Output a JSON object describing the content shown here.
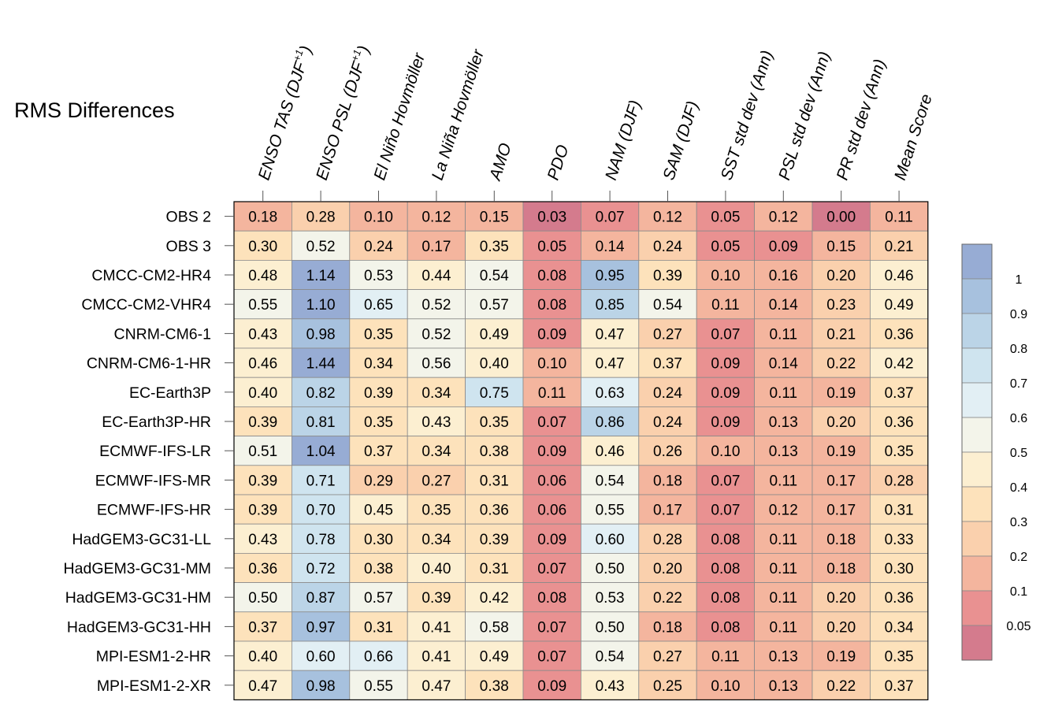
{
  "title": "RMS Differences",
  "chart_data": {
    "type": "heatmap",
    "title": "RMS Differences",
    "columns": [
      {
        "label": "ENSO TAS (DJF",
        "sup": "+1",
        "tail": ")"
      },
      {
        "label": "ENSO PSL (DJF",
        "sup": "+1",
        "tail": ")"
      },
      {
        "label": "El Niño Hovmöller",
        "sup": "",
        "tail": ""
      },
      {
        "label": "La Niña Hovmöller",
        "sup": "",
        "tail": ""
      },
      {
        "label": "AMO",
        "sup": "",
        "tail": ""
      },
      {
        "label": "PDO",
        "sup": "",
        "tail": ""
      },
      {
        "label": "NAM (DJF)",
        "sup": "",
        "tail": ""
      },
      {
        "label": "SAM (DJF)",
        "sup": "",
        "tail": ""
      },
      {
        "label": "SST std dev (Ann)",
        "sup": "",
        "tail": ""
      },
      {
        "label": "PSL std dev (Ann)",
        "sup": "",
        "tail": ""
      },
      {
        "label": "PR std dev (Ann)",
        "sup": "",
        "tail": ""
      },
      {
        "label": "Mean Score",
        "sup": "",
        "tail": ""
      }
    ],
    "rows": [
      "OBS 2",
      "OBS 3",
      "CMCC-CM2-HR4",
      "CMCC-CM2-VHR4",
      "CNRM-CM6-1",
      "CNRM-CM6-1-HR",
      "EC-Earth3P",
      "EC-Earth3P-HR",
      "ECMWF-IFS-LR",
      "ECMWF-IFS-MR",
      "ECMWF-IFS-HR",
      "HadGEM3-GC31-LL",
      "HadGEM3-GC31-MM",
      "HadGEM3-GC31-HM",
      "HadGEM3-GC31-HH",
      "MPI-ESM1-2-HR",
      "MPI-ESM1-2-XR"
    ],
    "values": [
      [
        "0.18",
        "0.28",
        "0.10",
        "0.12",
        "0.15",
        "0.03",
        "0.07",
        "0.12",
        "0.05",
        "0.12",
        "0.00",
        "0.11"
      ],
      [
        "0.30",
        "0.52",
        "0.24",
        "0.17",
        "0.35",
        "0.05",
        "0.14",
        "0.24",
        "0.05",
        "0.09",
        "0.15",
        "0.21"
      ],
      [
        "0.48",
        "1.14",
        "0.53",
        "0.44",
        "0.54",
        "0.08",
        "0.95",
        "0.39",
        "0.10",
        "0.16",
        "0.20",
        "0.46"
      ],
      [
        "0.55",
        "1.10",
        "0.65",
        "0.52",
        "0.57",
        "0.08",
        "0.85",
        "0.54",
        "0.11",
        "0.14",
        "0.23",
        "0.49"
      ],
      [
        "0.43",
        "0.98",
        "0.35",
        "0.52",
        "0.49",
        "0.09",
        "0.47",
        "0.27",
        "0.07",
        "0.11",
        "0.21",
        "0.36"
      ],
      [
        "0.46",
        "1.44",
        "0.34",
        "0.56",
        "0.40",
        "0.10",
        "0.47",
        "0.37",
        "0.09",
        "0.14",
        "0.22",
        "0.42"
      ],
      [
        "0.40",
        "0.82",
        "0.39",
        "0.34",
        "0.75",
        "0.11",
        "0.63",
        "0.24",
        "0.09",
        "0.11",
        "0.19",
        "0.37"
      ],
      [
        "0.39",
        "0.81",
        "0.35",
        "0.43",
        "0.35",
        "0.07",
        "0.86",
        "0.24",
        "0.09",
        "0.13",
        "0.20",
        "0.36"
      ],
      [
        "0.51",
        "1.04",
        "0.37",
        "0.34",
        "0.38",
        "0.09",
        "0.46",
        "0.26",
        "0.10",
        "0.13",
        "0.19",
        "0.35"
      ],
      [
        "0.39",
        "0.71",
        "0.29",
        "0.27",
        "0.31",
        "0.06",
        "0.54",
        "0.18",
        "0.07",
        "0.11",
        "0.17",
        "0.28"
      ],
      [
        "0.39",
        "0.70",
        "0.45",
        "0.35",
        "0.36",
        "0.06",
        "0.55",
        "0.17",
        "0.07",
        "0.12",
        "0.17",
        "0.31"
      ],
      [
        "0.43",
        "0.78",
        "0.30",
        "0.34",
        "0.39",
        "0.09",
        "0.60",
        "0.28",
        "0.08",
        "0.11",
        "0.18",
        "0.33"
      ],
      [
        "0.36",
        "0.72",
        "0.38",
        "0.40",
        "0.31",
        "0.07",
        "0.50",
        "0.20",
        "0.08",
        "0.11",
        "0.18",
        "0.30"
      ],
      [
        "0.50",
        "0.87",
        "0.57",
        "0.39",
        "0.42",
        "0.08",
        "0.53",
        "0.22",
        "0.08",
        "0.11",
        "0.20",
        "0.36"
      ],
      [
        "0.37",
        "0.97",
        "0.31",
        "0.41",
        "0.58",
        "0.07",
        "0.50",
        "0.18",
        "0.08",
        "0.11",
        "0.20",
        "0.34"
      ],
      [
        "0.40",
        "0.60",
        "0.66",
        "0.41",
        "0.49",
        "0.07",
        "0.54",
        "0.27",
        "0.11",
        "0.13",
        "0.19",
        "0.35"
      ],
      [
        "0.47",
        "0.98",
        "0.55",
        "0.47",
        "0.38",
        "0.09",
        "0.43",
        "0.25",
        "0.10",
        "0.13",
        "0.22",
        "0.37"
      ]
    ],
    "colorbar": {
      "ticks": [
        "1",
        "0.9",
        "0.8",
        "0.7",
        "0.6",
        "0.5",
        "0.4",
        "0.3",
        "0.2",
        "0.1",
        "0.05"
      ],
      "bins": [
        {
          "min": 1.0,
          "color": "#97acd4"
        },
        {
          "min": 0.9,
          "color": "#a7c1de"
        },
        {
          "min": 0.8,
          "color": "#bbd4e7"
        },
        {
          "min": 0.7,
          "color": "#cfe4ef"
        },
        {
          "min": 0.6,
          "color": "#e2eff4"
        },
        {
          "min": 0.5,
          "color": "#f3f4ea"
        },
        {
          "min": 0.4,
          "color": "#fcefd1"
        },
        {
          "min": 0.3,
          "color": "#fde2bb"
        },
        {
          "min": 0.2,
          "color": "#fad0ad"
        },
        {
          "min": 0.1,
          "color": "#f4b59e"
        },
        {
          "min": 0.05,
          "color": "#e99191"
        },
        {
          "min": -1,
          "color": "#d47b8d"
        }
      ]
    }
  }
}
